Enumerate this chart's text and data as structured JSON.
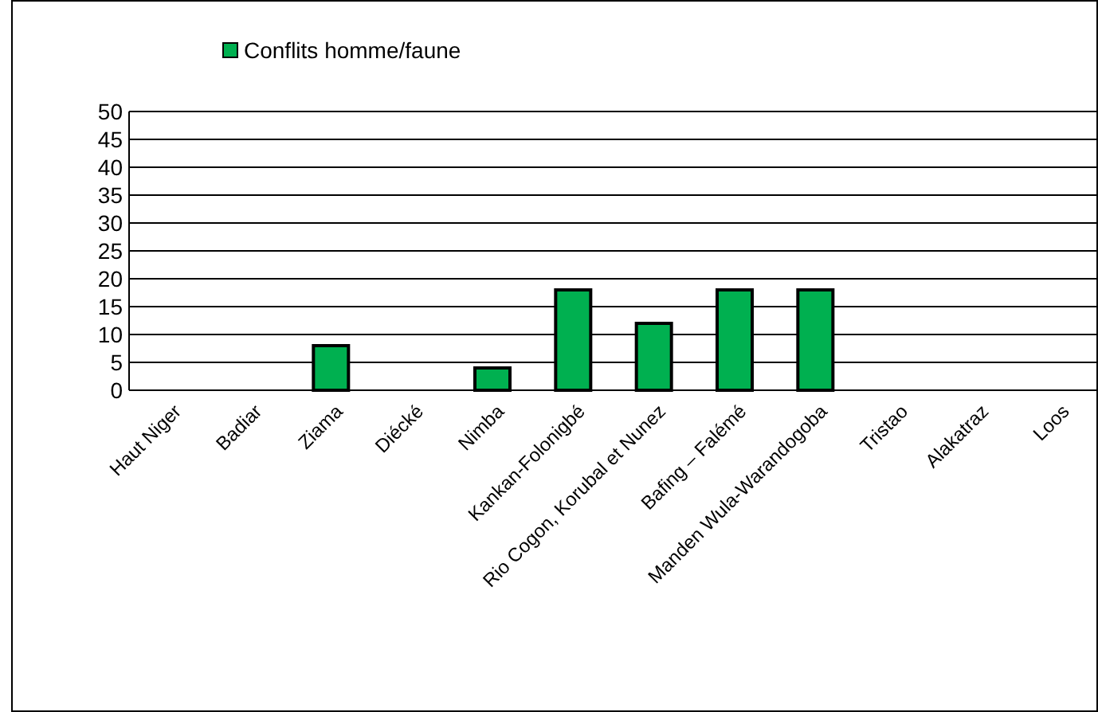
{
  "chart_data": {
    "type": "bar",
    "categories": [
      "Haut Niger",
      "Badiar",
      "Ziama",
      "Diécké",
      "Nimba",
      "Kankan-Folonigbé",
      "Rio Cogon, Korubal et Nunez",
      "Bafing – Falémé",
      "Manden Wula-Warandogoba",
      "Tristao",
      "Alakatraz",
      "Loos"
    ],
    "series": [
      {
        "name": "Conflits homme/faune",
        "color": "#00b050",
        "values": [
          0,
          0,
          8,
          0,
          4,
          18,
          12,
          18,
          18,
          0,
          0,
          0
        ]
      }
    ],
    "ylim": [
      0,
      50
    ],
    "yticks": [
      0,
      5,
      10,
      15,
      20,
      25,
      30,
      35,
      40,
      45,
      50
    ],
    "grid": "y",
    "legend": "top"
  }
}
